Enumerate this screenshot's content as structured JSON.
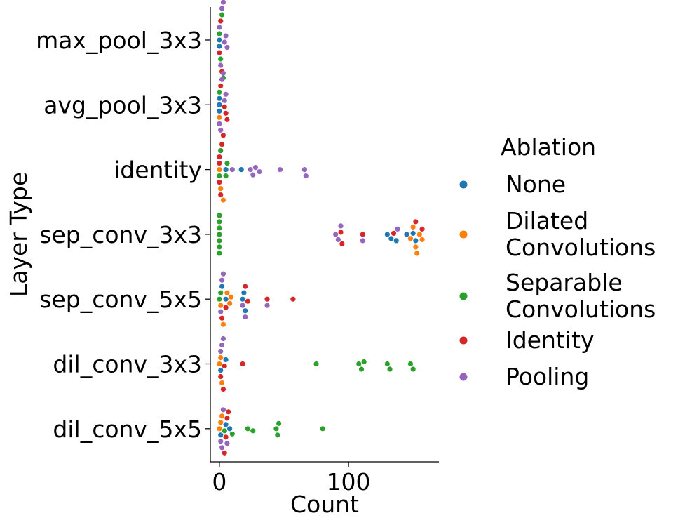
{
  "chart_data": {
    "type": "swarm",
    "xlabel": "Count",
    "ylabel": "Layer Type",
    "xlim": [
      -7,
      170
    ],
    "x_ticks": [
      0,
      100
    ],
    "categories": [
      "max_pool_3x3",
      "avg_pool_3x3",
      "identity",
      "sep_conv_3x3",
      "sep_conv_5x5",
      "dil_conv_3x3",
      "dil_conv_5x5"
    ],
    "legend": {
      "title": "Ablation",
      "placement": "right"
    },
    "series": [
      {
        "name": "None",
        "label_lines": [
          "None"
        ],
        "color": "#1f77b4",
        "values": [
          [
            0,
            0
          ],
          [
            0,
            0
          ],
          [
            1,
            0
          ],
          [
            1,
            0
          ],
          [
            1,
            0
          ],
          [
            2,
            5
          ],
          [
            2,
            17
          ],
          [
            3,
            130
          ],
          [
            3,
            133
          ],
          [
            3,
            137
          ],
          [
            3,
            145
          ],
          [
            3,
            150
          ],
          [
            3,
            152
          ],
          [
            4,
            2
          ],
          [
            4,
            5
          ],
          [
            4,
            18
          ],
          [
            4,
            19
          ],
          [
            4,
            20
          ],
          [
            5,
            1
          ],
          [
            5,
            5
          ],
          [
            6,
            1
          ],
          [
            6,
            5
          ],
          [
            6,
            8
          ]
        ]
      },
      {
        "name": "Dilated Convolutions",
        "label_lines": [
          "Dilated",
          "Convolutions"
        ],
        "color": "#ff7f0e",
        "values": [
          [
            1,
            0
          ],
          [
            2,
            0
          ],
          [
            2,
            1
          ],
          [
            2,
            3
          ],
          [
            3,
            148
          ],
          [
            3,
            150
          ],
          [
            3,
            152
          ],
          [
            3,
            153
          ],
          [
            3,
            155
          ],
          [
            3,
            157
          ],
          [
            4,
            1
          ],
          [
            4,
            3
          ],
          [
            4,
            6
          ],
          [
            4,
            8
          ],
          [
            4,
            9
          ],
          [
            5,
            0
          ],
          [
            5,
            1
          ],
          [
            5,
            2
          ],
          [
            6,
            0
          ],
          [
            6,
            1
          ],
          [
            6,
            2
          ]
        ]
      },
      {
        "name": "Separable Convolutions",
        "label_lines": [
          "Separable",
          "Convolutions"
        ],
        "color": "#2ca02c",
        "values": [
          [
            0,
            0
          ],
          [
            0,
            1
          ],
          [
            0,
            2
          ],
          [
            0,
            3
          ],
          [
            1,
            0
          ],
          [
            2,
            0
          ],
          [
            2,
            1
          ],
          [
            2,
            5
          ],
          [
            2,
            6
          ],
          [
            3,
            0
          ],
          [
            3,
            0
          ],
          [
            3,
            0
          ],
          [
            3,
            0
          ],
          [
            3,
            0
          ],
          [
            3,
            0
          ],
          [
            3,
            0
          ],
          [
            4,
            0
          ],
          [
            4,
            1
          ],
          [
            5,
            75
          ],
          [
            5,
            108
          ],
          [
            5,
            110
          ],
          [
            5,
            112
          ],
          [
            5,
            130
          ],
          [
            5,
            132
          ],
          [
            5,
            148
          ],
          [
            5,
            150
          ],
          [
            6,
            4
          ],
          [
            6,
            10
          ],
          [
            6,
            22
          ],
          [
            6,
            26
          ],
          [
            6,
            44
          ],
          [
            6,
            45
          ],
          [
            6,
            46
          ],
          [
            6,
            80
          ]
        ]
      },
      {
        "name": "Identity",
        "label_lines": [
          "Identity"
        ],
        "color": "#d62728",
        "values": [
          [
            0,
            0
          ],
          [
            0,
            1
          ],
          [
            0,
            2
          ],
          [
            1,
            1
          ],
          [
            1,
            3
          ],
          [
            1,
            4
          ],
          [
            1,
            5
          ],
          [
            1,
            6
          ],
          [
            2,
            0
          ],
          [
            2,
            0
          ],
          [
            2,
            0
          ],
          [
            2,
            1
          ],
          [
            2,
            2
          ],
          [
            3,
            94
          ],
          [
            3,
            95
          ],
          [
            3,
            111
          ],
          [
            3,
            135
          ],
          [
            3,
            152
          ],
          [
            3,
            157
          ],
          [
            4,
            2
          ],
          [
            4,
            5
          ],
          [
            4,
            20
          ],
          [
            4,
            22
          ],
          [
            4,
            37
          ],
          [
            4,
            57
          ],
          [
            5,
            1
          ],
          [
            5,
            3
          ],
          [
            5,
            4
          ],
          [
            5,
            18
          ],
          [
            6,
            4
          ],
          [
            6,
            5
          ],
          [
            6,
            6
          ],
          [
            6,
            7
          ]
        ]
      },
      {
        "name": "Pooling",
        "label_lines": [
          "Pooling"
        ],
        "color": "#9467bd",
        "values": [
          [
            0,
            0
          ],
          [
            0,
            1
          ],
          [
            0,
            2
          ],
          [
            0,
            3
          ],
          [
            0,
            4
          ],
          [
            0,
            5
          ],
          [
            0,
            6
          ],
          [
            1,
            0
          ],
          [
            1,
            1
          ],
          [
            1,
            2
          ],
          [
            1,
            3
          ],
          [
            1,
            4
          ],
          [
            1,
            5
          ],
          [
            2,
            10
          ],
          [
            2,
            24
          ],
          [
            2,
            26
          ],
          [
            2,
            28
          ],
          [
            2,
            31
          ],
          [
            2,
            47
          ],
          [
            2,
            66
          ],
          [
            2,
            67
          ],
          [
            3,
            90
          ],
          [
            3,
            92
          ],
          [
            3,
            94
          ],
          [
            3,
            111
          ],
          [
            3,
            138
          ],
          [
            4,
            1
          ],
          [
            4,
            2
          ],
          [
            4,
            3
          ],
          [
            4,
            18
          ],
          [
            4,
            20
          ],
          [
            4,
            37
          ],
          [
            5,
            1
          ],
          [
            5,
            2
          ],
          [
            5,
            3
          ],
          [
            6,
            1
          ],
          [
            6,
            2
          ],
          [
            6,
            3
          ],
          [
            6,
            6
          ]
        ]
      }
    ]
  }
}
